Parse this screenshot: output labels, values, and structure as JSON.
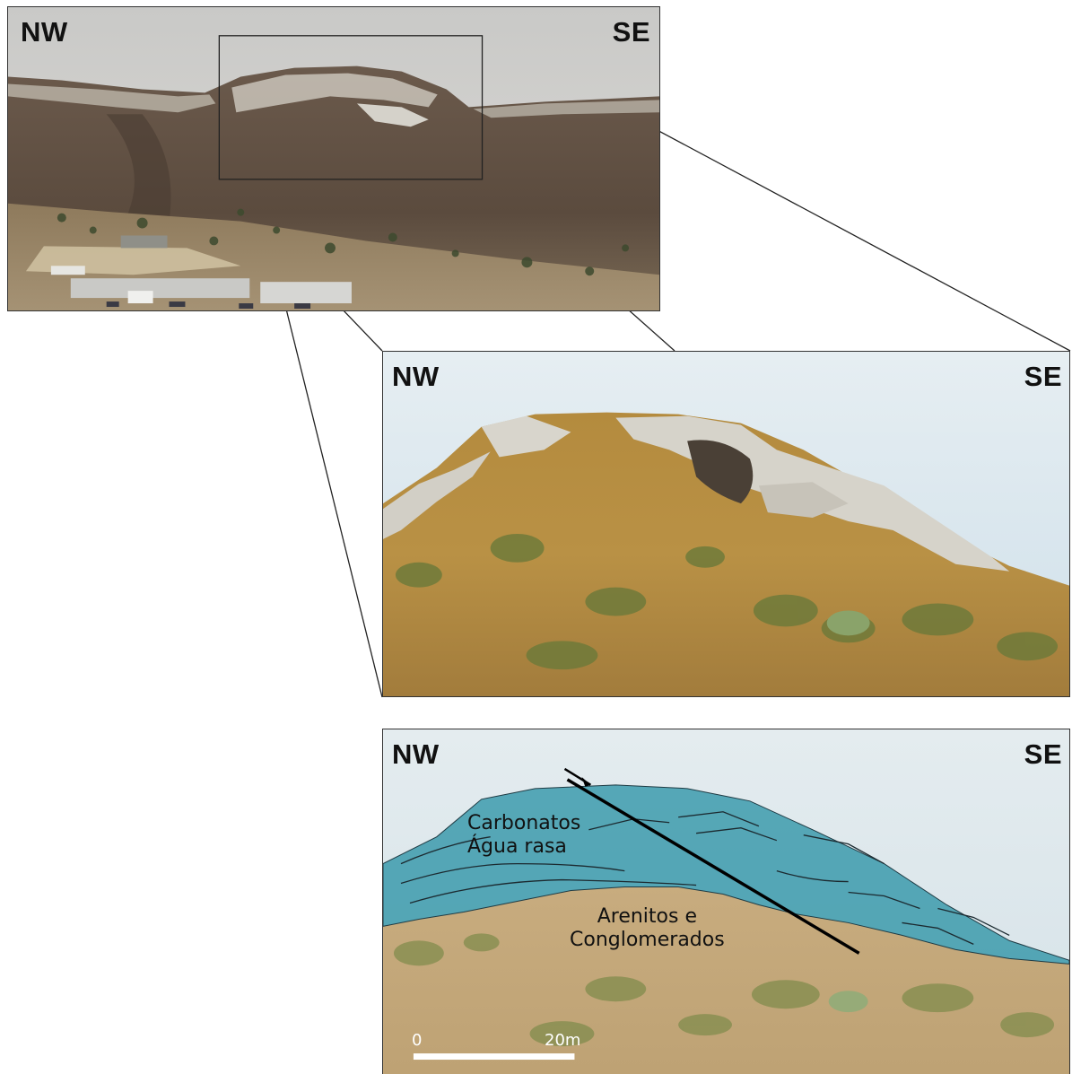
{
  "panels": {
    "overview": {
      "left_dir": "NW",
      "right_dir": "SE"
    },
    "closeup": {
      "left_dir": "NW",
      "right_dir": "SE"
    },
    "interpretation": {
      "left_dir": "NW",
      "right_dir": "SE",
      "units": {
        "upper": "Carbonatos\nÁgua rasa",
        "lower": "Arenitos e\nConglomerados"
      },
      "scale_bar": {
        "start": "0",
        "end": "20m"
      }
    }
  },
  "colors": {
    "sky_overview": "#cfcfcf",
    "hill_overview": "#5a4a3e",
    "sky_closeup": "#d8e6ee",
    "hill_closeup": "#b58a3a",
    "rock": "#d9d9d4",
    "carbonate_overlay": "#3fa7c3",
    "sand_interp": "#c8aa7a"
  }
}
